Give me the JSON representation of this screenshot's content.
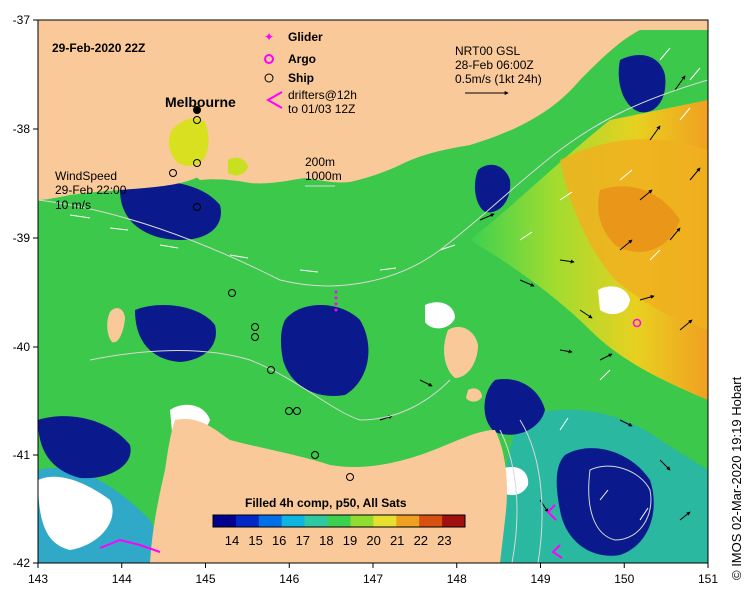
{
  "map": {
    "timestamp": "29-Feb-2020 22Z",
    "place_label": "Melbourne",
    "credit": "© IMOS 02-Mar-2020 19:19 Hobart",
    "colors": {
      "land": "#f9c99a",
      "sea_deep_cold": "#0a1a8c",
      "sea_green": "#3cc84a",
      "sea_warm": "#f0a020",
      "frame": "#000000"
    }
  },
  "axes": {
    "x_ticks": [
      "143",
      "144",
      "145",
      "146",
      "147",
      "148",
      "149",
      "150",
      "151"
    ],
    "y_ticks": [
      "-37",
      "-38",
      "-39",
      "-40",
      "-41",
      "-42"
    ],
    "xlim": [
      143,
      151
    ],
    "ylim": [
      -42,
      -37
    ]
  },
  "legend": {
    "glider": "Glider",
    "argo": "Argo",
    "ship": "Ship",
    "drifters_line1": "drifters@12h",
    "drifters_line2": "to 01/03 12Z",
    "glider_icon": "star-icon",
    "argo_icon": "ring-icon",
    "ship_icon": "circle-icon",
    "drifter_icon": "chevron-icon"
  },
  "currents": {
    "line1": "NRT00 GSL",
    "line2": "28-Feb 06:00Z",
    "line3": "0.5m/s (1kt 24h)"
  },
  "depth": {
    "line1": "200m",
    "line2": "1000m"
  },
  "wind": {
    "line1": "WindSpeed",
    "line2": "29-Feb 22:00",
    "line3": "10 m/s"
  },
  "colorbar": {
    "title": "Filled 4h comp, p50, All Sats",
    "ticks": [
      "14",
      "15",
      "16",
      "17",
      "18",
      "19",
      "20",
      "21",
      "22",
      "23"
    ],
    "colors": [
      "#00008c",
      "#0028c8",
      "#0070e8",
      "#10b4e0",
      "#30c8a0",
      "#3cd050",
      "#90dc30",
      "#e8e030",
      "#f0a020",
      "#d85010",
      "#a01010"
    ]
  }
}
